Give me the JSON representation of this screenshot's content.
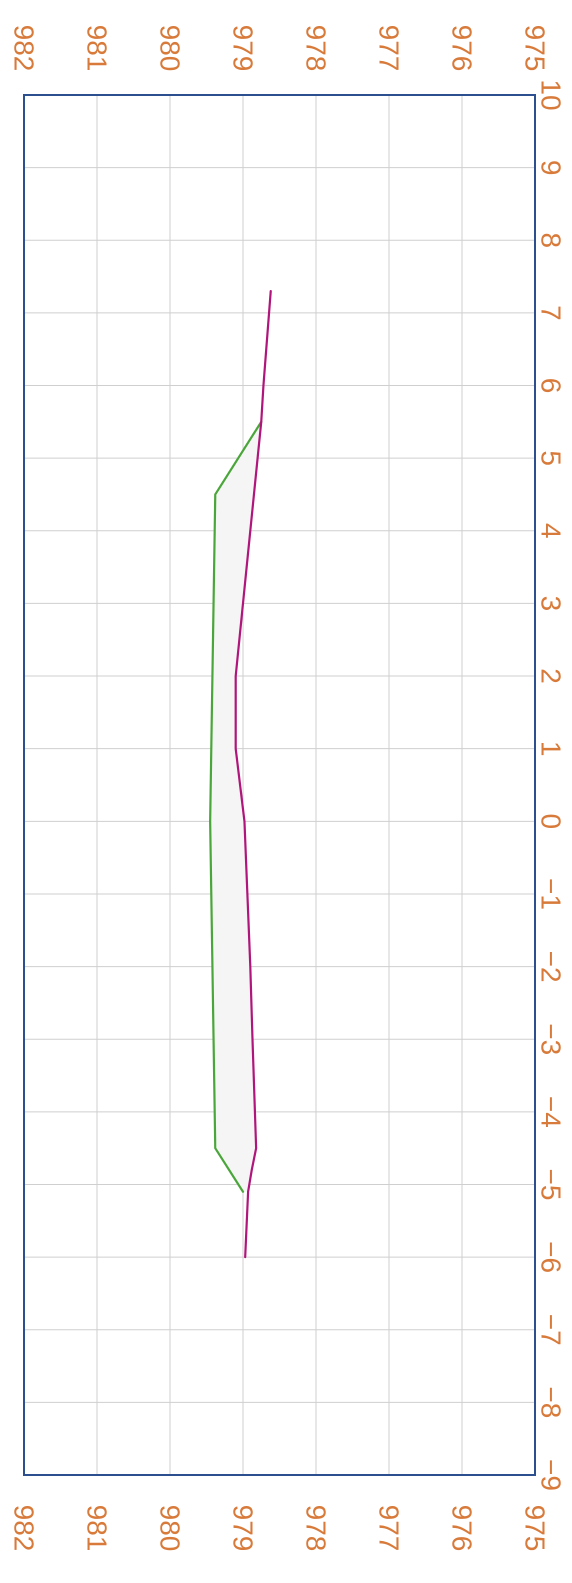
{
  "chart_data": {
    "type": "line",
    "title": "",
    "xlabel": "",
    "ylabel": "",
    "grid": true,
    "legend": "none",
    "orientation": "rotated-90",
    "xlim": [
      -9,
      10
    ],
    "ylim": [
      975,
      982
    ],
    "x_ticks": [
      {
        "value": -9,
        "label": "−9",
        "color": "#d87a3a"
      },
      {
        "value": -8,
        "label": "−8",
        "color": "#d87a3a"
      },
      {
        "value": -7,
        "label": "−7",
        "color": "#d87a3a"
      },
      {
        "value": -6,
        "label": "−6",
        "color": "#d87a3a"
      },
      {
        "value": -5,
        "label": "−5",
        "color": "#d87a3a"
      },
      {
        "value": -4,
        "label": "−4",
        "color": "#d87a3a"
      },
      {
        "value": -3,
        "label": "−3",
        "color": "#d87a3a"
      },
      {
        "value": -2,
        "label": "−2",
        "color": "#d87a3a"
      },
      {
        "value": -1,
        "label": "−1",
        "color": "#d87a3a"
      },
      {
        "value": 0,
        "label": "0",
        "color": "#4aa63a"
      },
      {
        "value": 1,
        "label": "1",
        "color": "#d87a3a"
      },
      {
        "value": 2,
        "label": "2",
        "color": "#d87a3a"
      },
      {
        "value": 3,
        "label": "3",
        "color": "#d87a3a"
      },
      {
        "value": 4,
        "label": "4",
        "color": "#d87a3a"
      },
      {
        "value": 5,
        "label": "5",
        "color": "#d87a3a"
      },
      {
        "value": 6,
        "label": "6",
        "color": "#d87a3a"
      },
      {
        "value": 7,
        "label": "7",
        "color": "#d87a3a"
      },
      {
        "value": 8,
        "label": "8",
        "color": "#d87a3a"
      },
      {
        "value": 9,
        "label": "9",
        "color": "#d87a3a"
      },
      {
        "value": 10,
        "label": "10",
        "color": "#d87a3a"
      }
    ],
    "y_ticks": [
      {
        "value": 982,
        "label": "982"
      },
      {
        "value": 981,
        "label": "981"
      },
      {
        "value": 980,
        "label": "980"
      },
      {
        "value": 979,
        "label": "979"
      },
      {
        "value": 978,
        "label": "978"
      },
      {
        "value": 977,
        "label": "977"
      },
      {
        "value": 976,
        "label": "976"
      },
      {
        "value": 975,
        "label": "975"
      }
    ],
    "series": [
      {
        "color": "#4aa63a",
        "x": [
          -5.1,
          -4.5,
          0,
          4.5,
          5.5
        ],
        "y": [
          979.0,
          979.38,
          979.45,
          979.38,
          978.75
        ]
      },
      {
        "color": "#b0157b",
        "x": [
          -6.0,
          -5.1,
          -4.8,
          -4.5,
          -3.0,
          -2.0,
          0,
          1.0,
          2.0,
          3.0,
          4.0,
          5.0,
          5.5,
          6.0,
          7.3
        ],
        "y": [
          978.97,
          978.93,
          978.88,
          978.82,
          978.87,
          978.9,
          978.98,
          979.1,
          979.1,
          979.0,
          978.9,
          978.8,
          978.75,
          978.72,
          978.62
        ]
      }
    ],
    "colors": {
      "frame": "#2b4f8f",
      "grid": "#cfcfcf",
      "tick_labels": "#d87a3a",
      "between_fill": "#f5f5f5"
    }
  }
}
